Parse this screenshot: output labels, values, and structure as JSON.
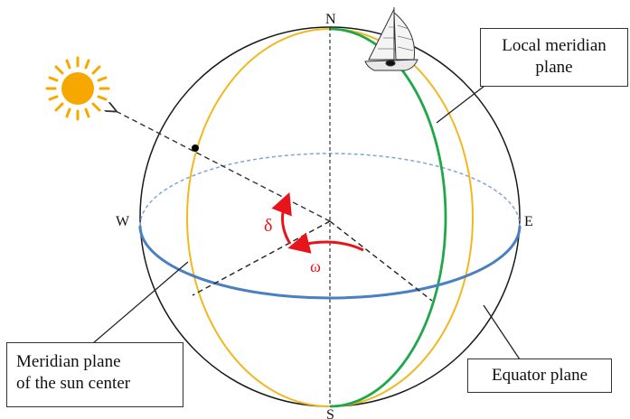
{
  "poles": {
    "north": "N",
    "south": "S",
    "west": "W",
    "east": "E"
  },
  "angles": {
    "declination": "δ",
    "hour_angle": "ω"
  },
  "callouts": {
    "local_meridian": {
      "line1": "Local meridian",
      "line2": "plane"
    },
    "sun_meridian": {
      "line1": "Meridian plane",
      "line2": "of the sun center"
    },
    "equator": {
      "text": "Equator plane"
    }
  },
  "colors": {
    "sphere": "#1a1a1a",
    "equator": "#4a7fc1",
    "equator_back": "#7da6d8",
    "local_meridian": "#1fa84a",
    "sun_meridian": "#f2b820",
    "sun": "#f6a800",
    "angle": "#e8141b"
  },
  "icons": {
    "sun": "sun-icon",
    "boat": "sailboat-icon"
  }
}
